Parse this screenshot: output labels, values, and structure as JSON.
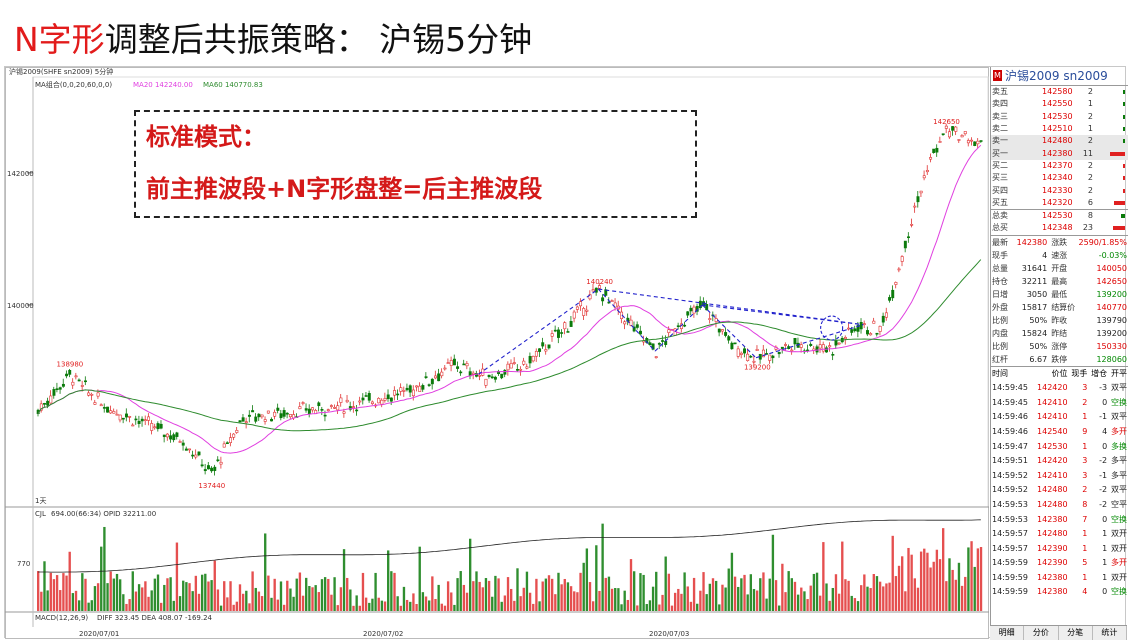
{
  "slide": {
    "title_red": "N字形",
    "title_rest": "调整后共振策略：  沪锡5分钟"
  },
  "annotation": {
    "line1": "标准模式：",
    "line2": "前主推波段+N字形盘整=后主推波段"
  },
  "chart": {
    "header_symbol": "沪锡2009(SHFE sn2009)  5分钟",
    "ma_label": "MA组合(0,0,20,60,0,0)",
    "ma20_label": "MA20 142240.00",
    "ma60_label": "MA60 140770.83",
    "price_ticks": [
      "142000",
      "140000"
    ],
    "price_labels": {
      "low1": "138980",
      "low2": "137440",
      "peak1": "140240",
      "low3": "139200",
      "high": "142650"
    },
    "oi_label": "CJL",
    "oi_values": "694.00(66:34)  OPID 32211.00",
    "vol_tick": "770",
    "macd_label": "MACD(12,26,9)",
    "macd_values": "DIFF 323.45  DEA 408.07   -169.24",
    "day_label": "1天",
    "dates": [
      "2020/07/01",
      "2020/07/02",
      "2020/07/03"
    ],
    "colors": {
      "up": "#e03030",
      "down": "#0b7a0b",
      "ma20": "#e040e0",
      "ma60": "#2e8b2e",
      "annotation": "#2222cc"
    }
  },
  "panel": {
    "title": "沪锡2009  sn2009",
    "orderbook": [
      {
        "label": "卖五",
        "price": "142580",
        "vol": "2",
        "bar": 0.05
      },
      {
        "label": "卖四",
        "price": "142550",
        "vol": "1",
        "bar": 0.03
      },
      {
        "label": "卖三",
        "price": "142530",
        "vol": "2",
        "bar": 0.05
      },
      {
        "label": "卖二",
        "price": "142510",
        "vol": "1",
        "bar": 0.03
      },
      {
        "label": "卖一",
        "price": "142480",
        "vol": "2",
        "bar": 0.05
      },
      {
        "label": "买一",
        "price": "142380",
        "vol": "11",
        "bar": 0.5
      },
      {
        "label": "买二",
        "price": "142370",
        "vol": "2",
        "bar": 0.05
      },
      {
        "label": "买三",
        "price": "142340",
        "vol": "2",
        "bar": 0.05
      },
      {
        "label": "买四",
        "price": "142330",
        "vol": "2",
        "bar": 0.05
      },
      {
        "label": "买五",
        "price": "142320",
        "vol": "6",
        "bar": 0.35
      }
    ],
    "totals": [
      {
        "label": "总卖",
        "price": "142530",
        "vol": "8",
        "bar": 0.2
      },
      {
        "label": "总买",
        "price": "142348",
        "vol": "23",
        "bar": 0.6
      }
    ],
    "quote": [
      {
        "k1": "最新",
        "v1": "142380",
        "c1": "red",
        "k2": "涨跌",
        "v2": "2590/1.85%",
        "c2": "red"
      },
      {
        "k1": "现手",
        "v1": "4",
        "c1": "dark",
        "k2": "速涨",
        "v2": "-0.03%",
        "c2": "green"
      },
      {
        "k1": "总量",
        "v1": "31641",
        "c1": "dark",
        "k2": "开盘",
        "v2": "140050",
        "c2": "red"
      },
      {
        "k1": "持仓",
        "v1": "32211",
        "c1": "dark",
        "k2": "最高",
        "v2": "142650",
        "c2": "red"
      },
      {
        "k1": "日增",
        "v1": "3050",
        "c1": "dark",
        "k2": "最低",
        "v2": "139200",
        "c2": "green"
      },
      {
        "k1": "外盘",
        "v1": "15817",
        "c1": "dark",
        "k2": "结算价",
        "v2": "140770",
        "c2": "red"
      },
      {
        "k1": "比例",
        "v1": "50%",
        "c1": "dark",
        "k2": "昨收",
        "v2": "139790",
        "c2": "dark"
      },
      {
        "k1": "内盘",
        "v1": "15824",
        "c1": "dark",
        "k2": "昨结",
        "v2": "139200",
        "c2": "dark"
      },
      {
        "k1": "比例",
        "v1": "50%",
        "c1": "dark",
        "k2": "涨停",
        "v2": "150330",
        "c2": "red"
      },
      {
        "k1": "红杆",
        "v1": "6.67",
        "c1": "dark",
        "k2": "跌停",
        "v2": "128060",
        "c2": "green"
      }
    ],
    "tick_header": {
      "time": "时间",
      "price": "价位",
      "vol": "现手",
      "oi": "增仓",
      "type": "开平"
    },
    "ticks": [
      {
        "time": "14:59:45",
        "price": "142420",
        "vol": "3",
        "oi": "-3",
        "type": "双平"
      },
      {
        "time": "14:59:45",
        "price": "142410",
        "vol": "2",
        "oi": "0",
        "type": "空换"
      },
      {
        "time": "14:59:46",
        "price": "142410",
        "vol": "1",
        "oi": "-1",
        "type": "双平"
      },
      {
        "time": "14:59:46",
        "price": "142540",
        "vol": "9",
        "oi": "4",
        "type": "多开"
      },
      {
        "time": "14:59:47",
        "price": "142530",
        "vol": "1",
        "oi": "0",
        "type": "多换"
      },
      {
        "time": "14:59:51",
        "price": "142420",
        "vol": "3",
        "oi": "-2",
        "type": "多平"
      },
      {
        "time": "14:59:52",
        "price": "142410",
        "vol": "3",
        "oi": "-1",
        "type": "多平"
      },
      {
        "time": "14:59:52",
        "price": "142480",
        "vol": "2",
        "oi": "-2",
        "type": "双平"
      },
      {
        "time": "14:59:53",
        "price": "142480",
        "vol": "8",
        "oi": "-2",
        "type": "空平"
      },
      {
        "time": "14:59:53",
        "price": "142380",
        "vol": "7",
        "oi": "0",
        "type": "空换"
      },
      {
        "time": "14:59:57",
        "price": "142480",
        "vol": "1",
        "oi": "1",
        "type": "双开"
      },
      {
        "time": "14:59:57",
        "price": "142390",
        "vol": "1",
        "oi": "1",
        "type": "双开"
      },
      {
        "time": "14:59:59",
        "price": "142390",
        "vol": "5",
        "oi": "1",
        "type": "多开"
      },
      {
        "time": "14:59:59",
        "price": "142380",
        "vol": "1",
        "oi": "1",
        "type": "双开"
      },
      {
        "time": "14:59:59",
        "price": "142380",
        "vol": "4",
        "oi": "0",
        "type": "空换"
      }
    ],
    "tabs": [
      "明细",
      "分价",
      "分笔",
      "统计"
    ]
  }
}
